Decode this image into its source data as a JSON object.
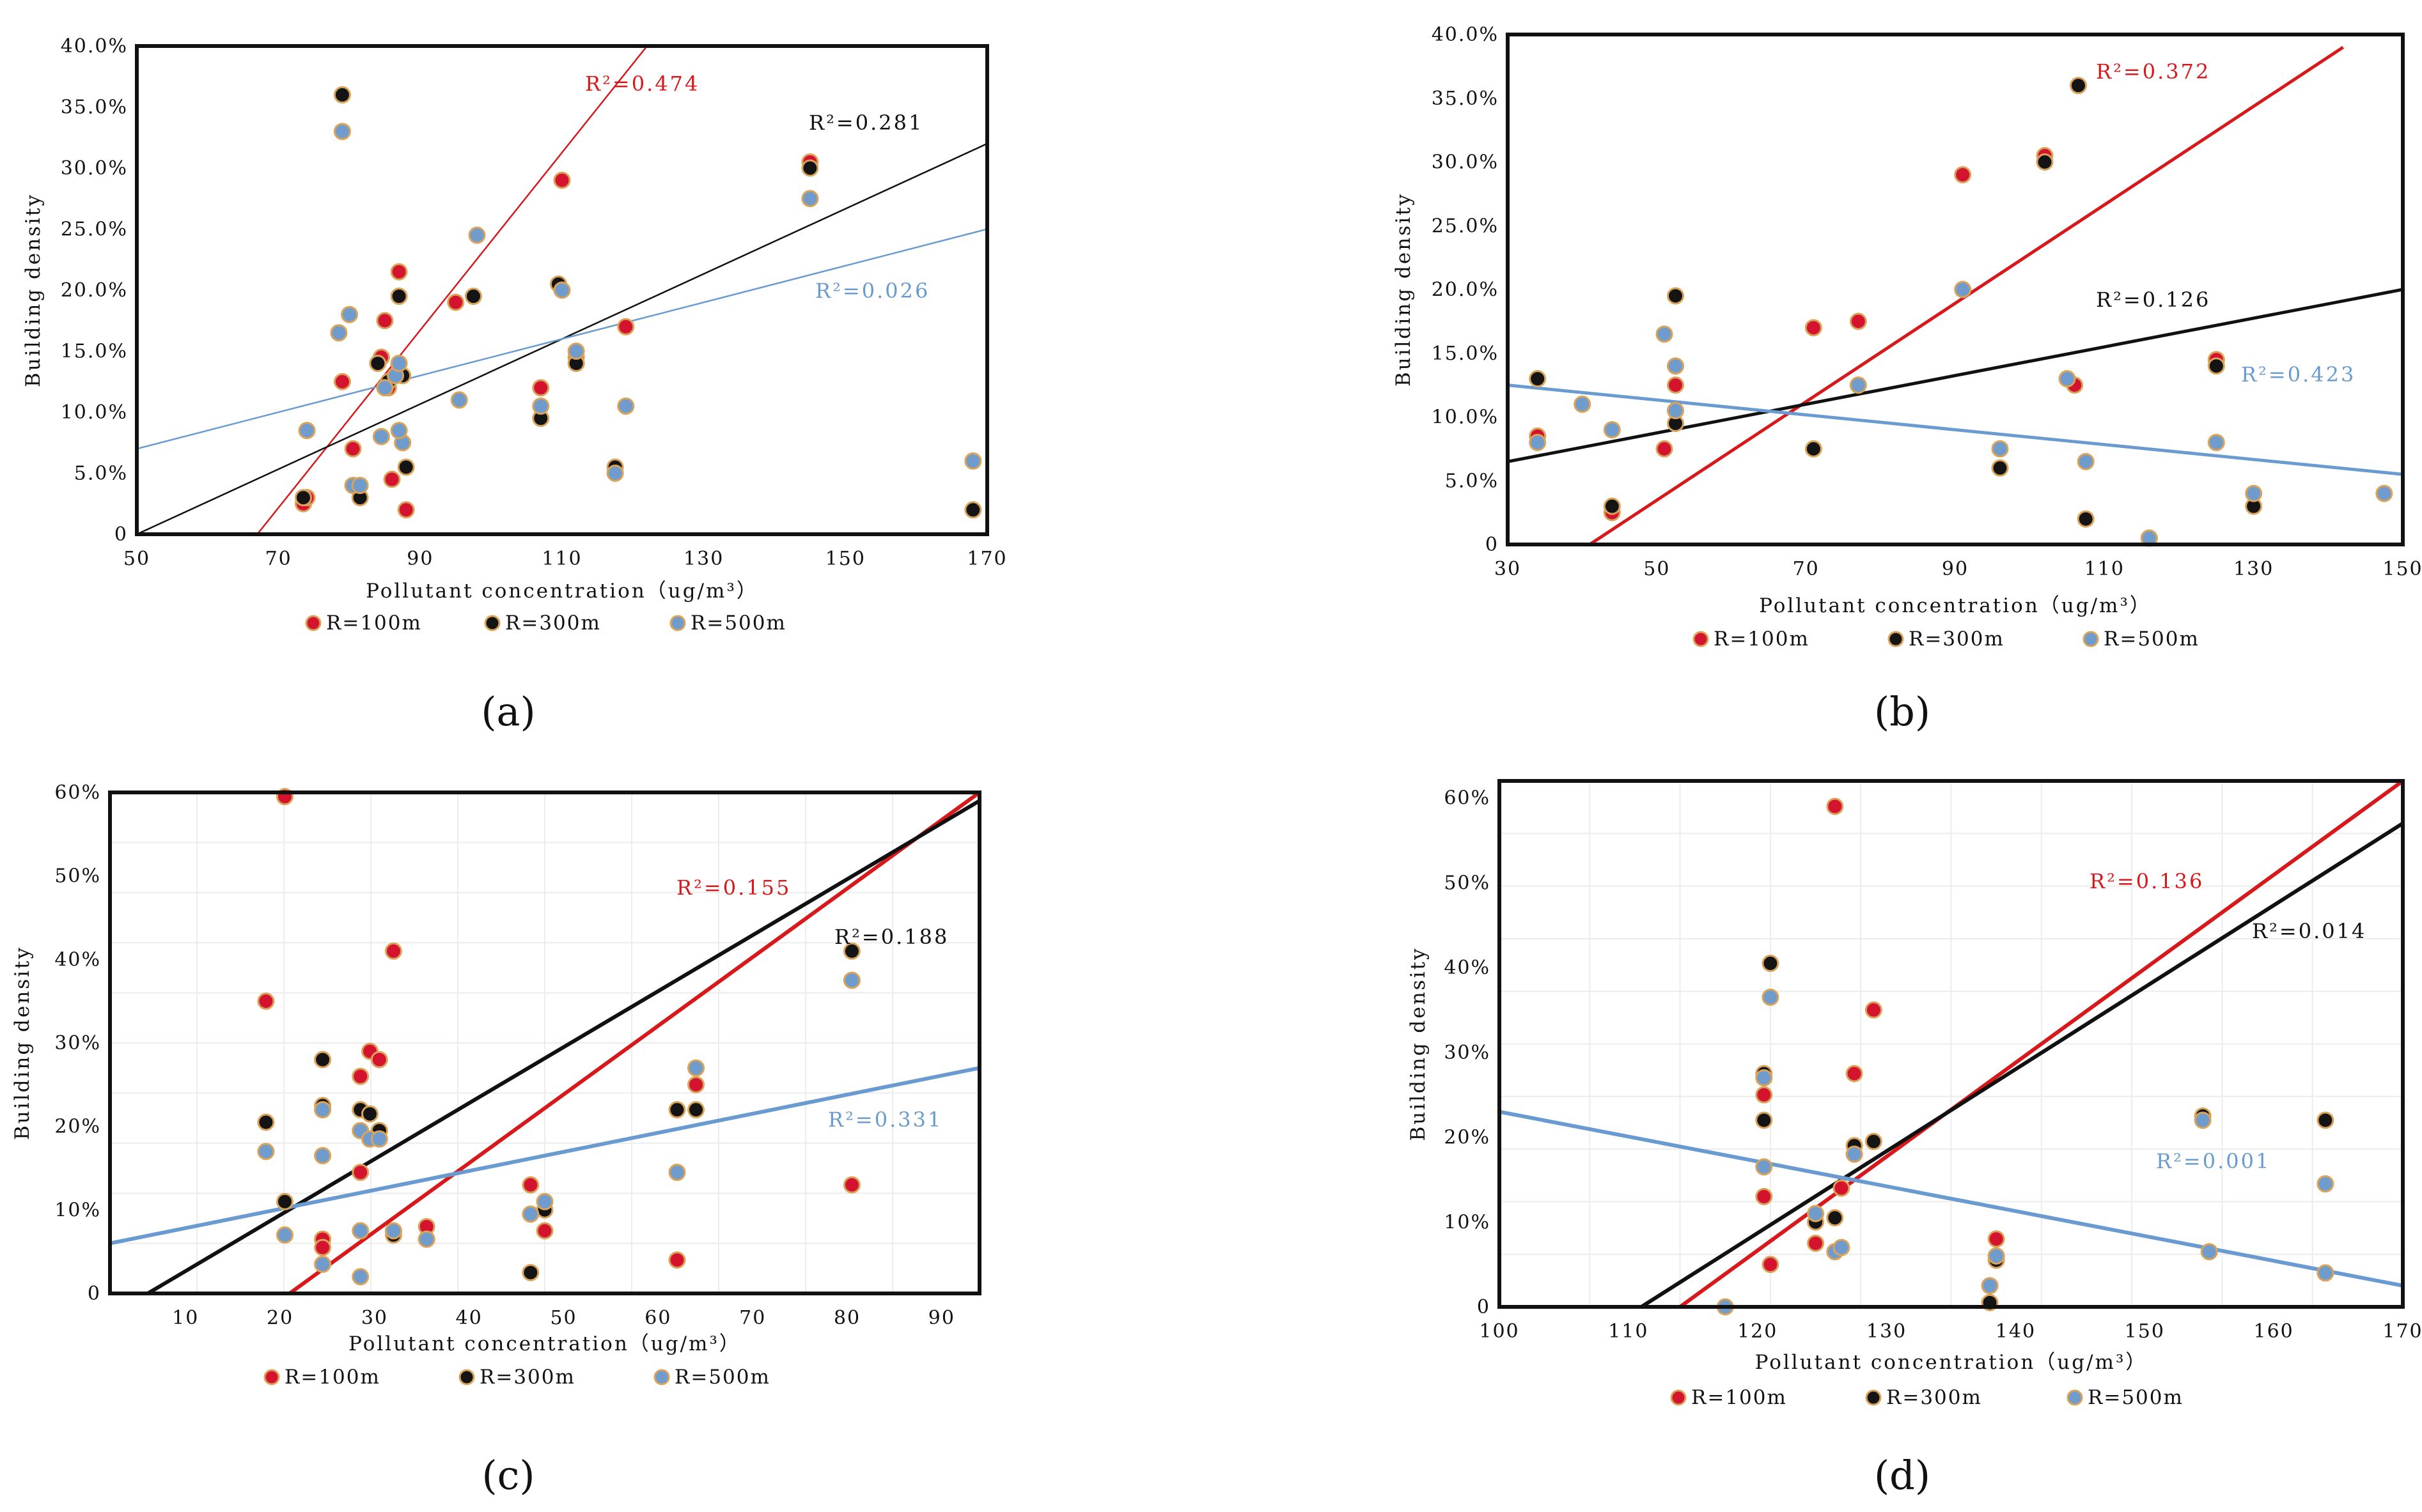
{
  "colors": {
    "red": "#d7191c",
    "black": "#111111",
    "blue": "#6a9bd0",
    "marker_red": "#d4142e",
    "marker_black": "#141414",
    "marker_blue": "#6f9ccc",
    "marker_outline": "#d9a35a"
  },
  "chart_data": [
    {
      "type": "scatter",
      "panel_label": "(a)",
      "xlabel": "Pollutant concentration（ug/m³）",
      "ylabel": "Building density",
      "xlim": [
        50,
        170
      ],
      "ylim": [
        0,
        40
      ],
      "x_ticks": [
        "50",
        "70",
        "90",
        "110",
        "130",
        "150",
        "170"
      ],
      "y_ticks": [
        "0",
        "5.0%",
        "10.0%",
        "15.0%",
        "20.0%",
        "25.0%",
        "30.0%",
        "35.0%",
        "40.0%"
      ],
      "series": [
        {
          "name": "R=100m",
          "color_key": "red",
          "points": [
            [
              73.5,
              2.5
            ],
            [
              79,
              12.5
            ],
            [
              80.5,
              7
            ],
            [
              84.5,
              14.5
            ],
            [
              85,
              17.5
            ],
            [
              86,
              4.5
            ],
            [
              87,
              21.5
            ],
            [
              88,
              2
            ],
            [
              95,
              19
            ],
            [
              107,
              12
            ],
            [
              110,
              29
            ],
            [
              112,
              14.5
            ],
            [
              119,
              17
            ],
            [
              145,
              30.5
            ],
            [
              74,
              3
            ],
            [
              85.5,
              12
            ]
          ],
          "trend": {
            "r2_label": "R²=0.474",
            "start": [
              67,
              0
            ],
            "end": [
              122,
              40
            ]
          }
        },
        {
          "name": "R=300m",
          "color_key": "black",
          "points": [
            [
              73.5,
              3
            ],
            [
              79,
              36
            ],
            [
              81.5,
              3
            ],
            [
              84,
              14
            ],
            [
              85.5,
              12.5
            ],
            [
              87,
              19.5
            ],
            [
              87.5,
              13
            ],
            [
              88,
              5.5
            ],
            [
              97.5,
              19.5
            ],
            [
              107,
              9.5
            ],
            [
              109.5,
              20.5
            ],
            [
              112,
              14
            ],
            [
              117.5,
              5.5
            ],
            [
              145,
              30
            ],
            [
              168,
              2
            ]
          ],
          "trend": {
            "r2_label": "R²=0.281",
            "start": [
              50,
              0
            ],
            "end": [
              170,
              32
            ]
          }
        },
        {
          "name": "R=500m",
          "color_key": "blue",
          "points": [
            [
              74,
              8.5
            ],
            [
              78.5,
              16.5
            ],
            [
              79,
              33
            ],
            [
              80,
              18
            ],
            [
              80.5,
              4
            ],
            [
              81.5,
              4
            ],
            [
              84.5,
              8
            ],
            [
              85,
              12
            ],
            [
              86.5,
              13
            ],
            [
              87,
              14
            ],
            [
              87.5,
              7.5
            ],
            [
              87,
              8.5
            ],
            [
              95.5,
              11
            ],
            [
              98,
              24.5
            ],
            [
              107,
              10.5
            ],
            [
              110,
              20
            ],
            [
              112,
              15
            ],
            [
              117.5,
              5
            ],
            [
              119,
              10.5
            ],
            [
              145,
              27.5
            ],
            [
              168,
              6
            ]
          ],
          "trend": {
            "r2_label": "R²=0.026",
            "start": [
              50,
              7
            ],
            "end": [
              170,
              25
            ]
          }
        }
      ]
    },
    {
      "type": "scatter",
      "panel_label": "(b)",
      "xlabel": "Pollutant concentration（ug/m³）",
      "ylabel": "Building density",
      "xlim": [
        30,
        150
      ],
      "ylim": [
        0,
        40
      ],
      "x_ticks": [
        "30",
        "50",
        "70",
        "90",
        "110",
        "130",
        "150"
      ],
      "y_ticks": [
        "0",
        "5.0%",
        "10.0%",
        "15.0%",
        "20.0%",
        "25.0%",
        "30.0%",
        "35.0%",
        "40.0%"
      ],
      "series": [
        {
          "name": "R=100m",
          "color_key": "red",
          "points": [
            [
              34,
              8.5
            ],
            [
              44,
              2.5
            ],
            [
              51,
              7.5
            ],
            [
              52.5,
              12.5
            ],
            [
              71,
              17
            ],
            [
              77,
              17.5
            ],
            [
              91,
              29
            ],
            [
              102,
              30.5
            ],
            [
              106,
              12.5
            ],
            [
              125,
              14.5
            ]
          ],
          "trend": {
            "r2_label": "R²=0.372",
            "start": [
              41,
              0
            ],
            "end": [
              142,
              39
            ]
          }
        },
        {
          "name": "R=300m",
          "color_key": "black",
          "points": [
            [
              34,
              13
            ],
            [
              44,
              3
            ],
            [
              52.5,
              19.5
            ],
            [
              52.5,
              9.5
            ],
            [
              71,
              7.5
            ],
            [
              96,
              6
            ],
            [
              102,
              30
            ],
            [
              106.5,
              36
            ],
            [
              107.5,
              2
            ],
            [
              116,
              0.5
            ],
            [
              125,
              14
            ],
            [
              130,
              3
            ]
          ],
          "trend": {
            "r2_label": "R²=0.126",
            "start": [
              30,
              6.5
            ],
            "end": [
              150,
              20
            ]
          }
        },
        {
          "name": "R=500m",
          "color_key": "blue",
          "points": [
            [
              34,
              8
            ],
            [
              40,
              11
            ],
            [
              44,
              9
            ],
            [
              51,
              16.5
            ],
            [
              52.5,
              14
            ],
            [
              52.5,
              10.5
            ],
            [
              77,
              12.5
            ],
            [
              91,
              20
            ],
            [
              96,
              7.5
            ],
            [
              105,
              13
            ],
            [
              107.5,
              6.5
            ],
            [
              116,
              0.5
            ],
            [
              125,
              8
            ],
            [
              130,
              4
            ],
            [
              147.5,
              4
            ]
          ],
          "trend": {
            "r2_label": "R²=0.423",
            "start": [
              30,
              12.5
            ],
            "end": [
              150,
              5.5
            ]
          }
        }
      ]
    },
    {
      "type": "scatter",
      "panel_label": "(c)",
      "xlabel": "Pollutant concentration（ug/m³）",
      "ylabel": "Building density",
      "xlim": [
        2,
        94
      ],
      "ylim": [
        0,
        60
      ],
      "x_ticks": [
        "10",
        "20",
        "30",
        "40",
        "50",
        "60",
        "70",
        "80",
        "90"
      ],
      "y_ticks": [
        "0",
        "10%",
        "20%",
        "30%",
        "40%",
        "50%",
        "60%"
      ],
      "series": [
        {
          "name": "R=100m",
          "color_key": "red",
          "points": [
            [
              18.5,
              35
            ],
            [
              20.5,
              59.5
            ],
            [
              24.5,
              6.5
            ],
            [
              24.5,
              5.5
            ],
            [
              28.5,
              26
            ],
            [
              29.5,
              29
            ],
            [
              30.5,
              28
            ],
            [
              32,
              41
            ],
            [
              28.5,
              14.5
            ],
            [
              35.5,
              8
            ],
            [
              46.5,
              13
            ],
            [
              48,
              7.5
            ],
            [
              64,
              25
            ],
            [
              80.5,
              13
            ],
            [
              62,
              4
            ]
          ],
          "trend": {
            "r2_label": "R²=0.155",
            "start": [
              21,
              0
            ],
            "end": [
              94,
              60
            ]
          }
        },
        {
          "name": "R=300m",
          "color_key": "black",
          "points": [
            [
              18.5,
              20.5
            ],
            [
              20.5,
              11
            ],
            [
              24.5,
              28
            ],
            [
              24.5,
              22.5
            ],
            [
              28.5,
              22
            ],
            [
              29.5,
              21.5
            ],
            [
              30.5,
              19.5
            ],
            [
              32,
              7
            ],
            [
              35.5,
              6.5
            ],
            [
              46.5,
              2.5
            ],
            [
              48,
              10
            ],
            [
              62,
              22
            ],
            [
              64,
              22
            ],
            [
              80.5,
              41
            ]
          ],
          "trend": {
            "r2_label": "R²=0.188",
            "start": [
              6,
              0
            ],
            "end": [
              94,
              59
            ]
          }
        },
        {
          "name": "R=500m",
          "color_key": "blue",
          "points": [
            [
              18.5,
              17
            ],
            [
              20.5,
              7
            ],
            [
              24.5,
              3.5
            ],
            [
              24.5,
              16.5
            ],
            [
              24.5,
              22
            ],
            [
              28.5,
              19.5
            ],
            [
              29.5,
              18.5
            ],
            [
              30.5,
              18.5
            ],
            [
              28.5,
              7.5
            ],
            [
              28.5,
              2
            ],
            [
              32,
              7.5
            ],
            [
              35.5,
              6.5
            ],
            [
              46.5,
              9.5
            ],
            [
              48,
              11
            ],
            [
              62,
              14.5
            ],
            [
              64,
              27
            ],
            [
              80.5,
              37.5
            ]
          ],
          "trend": {
            "r2_label": "R²=0.331",
            "start": [
              2,
              6
            ],
            "end": [
              94,
              27
            ]
          }
        }
      ]
    },
    {
      "type": "scatter",
      "panel_label": "(d)",
      "xlabel": "Pollutant concentration（ug/m³）",
      "ylabel": "Building density",
      "xlim": [
        100,
        170
      ],
      "ylim": [
        0,
        62
      ],
      "x_ticks": [
        "100",
        "110",
        "120",
        "130",
        "140",
        "150",
        "160",
        "170"
      ],
      "y_ticks": [
        "0",
        "10%",
        "20%",
        "30%",
        "40%",
        "50%",
        "60%"
      ],
      "series": [
        {
          "name": "R=100m",
          "color_key": "red",
          "points": [
            [
              120.5,
              25
            ],
            [
              120.5,
              13
            ],
            [
              121,
              5
            ],
            [
              126,
              59
            ],
            [
              127.5,
              27.5
            ],
            [
              129,
              35
            ],
            [
              124.5,
              7.5
            ],
            [
              126.5,
              14
            ],
            [
              138.5,
              8
            ]
          ],
          "trend": {
            "r2_label": "R²=0.136",
            "start": [
              114,
              0
            ],
            "end": [
              170,
              62
            ]
          }
        },
        {
          "name": "R=300m",
          "color_key": "black",
          "points": [
            [
              120.5,
              22
            ],
            [
              120.5,
              27.5
            ],
            [
              121,
              40.5
            ],
            [
              124.5,
              10
            ],
            [
              126,
              10.5
            ],
            [
              127.5,
              19
            ],
            [
              129,
              19.5
            ],
            [
              138,
              0.5
            ],
            [
              138.5,
              5.5
            ],
            [
              154.5,
              22.5
            ],
            [
              164,
              22
            ]
          ],
          "trend": {
            "r2_label": "R²=0.014",
            "start": [
              111,
              0
            ],
            "end": [
              170,
              57
            ]
          }
        },
        {
          "name": "R=500m",
          "color_key": "blue",
          "points": [
            [
              117.5,
              0
            ],
            [
              120.5,
              27
            ],
            [
              120.5,
              16.5
            ],
            [
              121,
              36.5
            ],
            [
              124.5,
              11
            ],
            [
              126,
              6.5
            ],
            [
              126.5,
              7
            ],
            [
              127.5,
              18
            ],
            [
              138,
              2.5
            ],
            [
              138.5,
              6
            ],
            [
              154.5,
              22
            ],
            [
              164,
              14.5
            ],
            [
              164,
              4
            ],
            [
              155,
              6.5
            ]
          ],
          "trend": {
            "r2_label": "R²=0.001",
            "start": [
              100,
              23
            ],
            "end": [
              170,
              2.5
            ]
          }
        }
      ]
    }
  ]
}
